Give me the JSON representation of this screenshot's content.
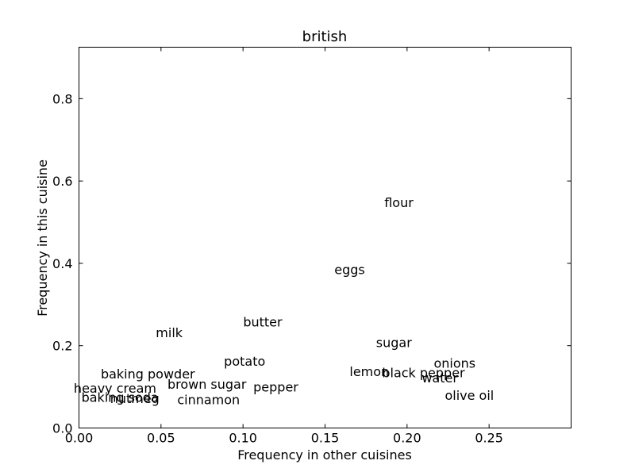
{
  "chart_data": {
    "type": "scatter",
    "title": "british",
    "xlabel": "Frequency in other cuisines",
    "ylabel": "Frequency in this cuisine",
    "xlim": [
      0.0,
      0.3
    ],
    "ylim": [
      0.0,
      0.925
    ],
    "xticks": [
      0.0,
      0.05,
      0.1,
      0.15,
      0.2,
      0.25
    ],
    "xtick_labels": [
      "0.00",
      "0.05",
      "0.10",
      "0.15",
      "0.20",
      "0.25"
    ],
    "yticks": [
      0.0,
      0.2,
      0.4,
      0.6,
      0.8
    ],
    "ytick_labels": [
      "0.0",
      "0.2",
      "0.4",
      "0.6",
      "0.8"
    ],
    "grid": false,
    "points": [
      {
        "label": "flour",
        "x": 0.195,
        "y": 0.548
      },
      {
        "label": "eggs",
        "x": 0.165,
        "y": 0.385
      },
      {
        "label": "butter",
        "x": 0.112,
        "y": 0.258
      },
      {
        "label": "milk",
        "x": 0.055,
        "y": 0.232
      },
      {
        "label": "sugar",
        "x": 0.192,
        "y": 0.208
      },
      {
        "label": "onions",
        "x": 0.229,
        "y": 0.158
      },
      {
        "label": "potato",
        "x": 0.101,
        "y": 0.163
      },
      {
        "label": "baking powder",
        "x": 0.042,
        "y": 0.132
      },
      {
        "label": "lemon",
        "x": 0.177,
        "y": 0.138
      },
      {
        "label": "black pepper",
        "x": 0.21,
        "y": 0.135
      },
      {
        "label": "water",
        "x": 0.22,
        "y": 0.122
      },
      {
        "label": "brown sugar",
        "x": 0.078,
        "y": 0.107
      },
      {
        "label": "heavy cream",
        "x": 0.022,
        "y": 0.097
      },
      {
        "label": "pepper",
        "x": 0.12,
        "y": 0.1
      },
      {
        "label": "baking soda",
        "x": 0.025,
        "y": 0.075
      },
      {
        "label": "nutmeg",
        "x": 0.034,
        "y": 0.072
      },
      {
        "label": "cinnamon",
        "x": 0.079,
        "y": 0.069
      },
      {
        "label": "olive oil",
        "x": 0.238,
        "y": 0.08
      }
    ]
  }
}
